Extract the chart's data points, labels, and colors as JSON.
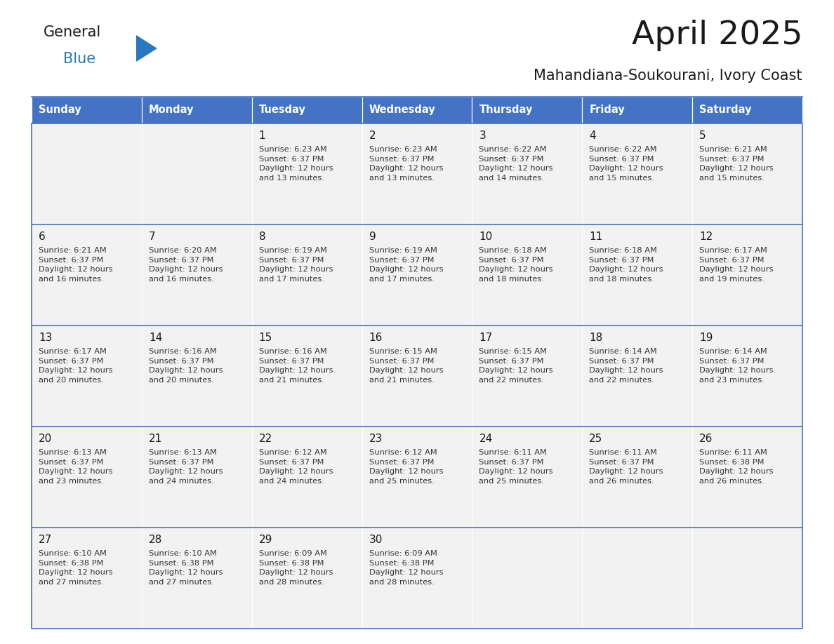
{
  "title": "April 2025",
  "subtitle": "Mahandiana-Soukourani, Ivory Coast",
  "header_color": "#4472C4",
  "header_text_color": "#FFFFFF",
  "cell_bg_color": "#F2F2F2",
  "cell_bg_empty": "#FFFFFF",
  "border_color": "#4472C4",
  "text_color": "#333333",
  "day_num_color": "#1a1a1a",
  "days_of_week": [
    "Sunday",
    "Monday",
    "Tuesday",
    "Wednesday",
    "Thursday",
    "Friday",
    "Saturday"
  ],
  "weeks": [
    [
      {
        "day": "",
        "text": ""
      },
      {
        "day": "",
        "text": ""
      },
      {
        "day": "1",
        "text": "Sunrise: 6:23 AM\nSunset: 6:37 PM\nDaylight: 12 hours\nand 13 minutes."
      },
      {
        "day": "2",
        "text": "Sunrise: 6:23 AM\nSunset: 6:37 PM\nDaylight: 12 hours\nand 13 minutes."
      },
      {
        "day": "3",
        "text": "Sunrise: 6:22 AM\nSunset: 6:37 PM\nDaylight: 12 hours\nand 14 minutes."
      },
      {
        "day": "4",
        "text": "Sunrise: 6:22 AM\nSunset: 6:37 PM\nDaylight: 12 hours\nand 15 minutes."
      },
      {
        "day": "5",
        "text": "Sunrise: 6:21 AM\nSunset: 6:37 PM\nDaylight: 12 hours\nand 15 minutes."
      }
    ],
    [
      {
        "day": "6",
        "text": "Sunrise: 6:21 AM\nSunset: 6:37 PM\nDaylight: 12 hours\nand 16 minutes."
      },
      {
        "day": "7",
        "text": "Sunrise: 6:20 AM\nSunset: 6:37 PM\nDaylight: 12 hours\nand 16 minutes."
      },
      {
        "day": "8",
        "text": "Sunrise: 6:19 AM\nSunset: 6:37 PM\nDaylight: 12 hours\nand 17 minutes."
      },
      {
        "day": "9",
        "text": "Sunrise: 6:19 AM\nSunset: 6:37 PM\nDaylight: 12 hours\nand 17 minutes."
      },
      {
        "day": "10",
        "text": "Sunrise: 6:18 AM\nSunset: 6:37 PM\nDaylight: 12 hours\nand 18 minutes."
      },
      {
        "day": "11",
        "text": "Sunrise: 6:18 AM\nSunset: 6:37 PM\nDaylight: 12 hours\nand 18 minutes."
      },
      {
        "day": "12",
        "text": "Sunrise: 6:17 AM\nSunset: 6:37 PM\nDaylight: 12 hours\nand 19 minutes."
      }
    ],
    [
      {
        "day": "13",
        "text": "Sunrise: 6:17 AM\nSunset: 6:37 PM\nDaylight: 12 hours\nand 20 minutes."
      },
      {
        "day": "14",
        "text": "Sunrise: 6:16 AM\nSunset: 6:37 PM\nDaylight: 12 hours\nand 20 minutes."
      },
      {
        "day": "15",
        "text": "Sunrise: 6:16 AM\nSunset: 6:37 PM\nDaylight: 12 hours\nand 21 minutes."
      },
      {
        "day": "16",
        "text": "Sunrise: 6:15 AM\nSunset: 6:37 PM\nDaylight: 12 hours\nand 21 minutes."
      },
      {
        "day": "17",
        "text": "Sunrise: 6:15 AM\nSunset: 6:37 PM\nDaylight: 12 hours\nand 22 minutes."
      },
      {
        "day": "18",
        "text": "Sunrise: 6:14 AM\nSunset: 6:37 PM\nDaylight: 12 hours\nand 22 minutes."
      },
      {
        "day": "19",
        "text": "Sunrise: 6:14 AM\nSunset: 6:37 PM\nDaylight: 12 hours\nand 23 minutes."
      }
    ],
    [
      {
        "day": "20",
        "text": "Sunrise: 6:13 AM\nSunset: 6:37 PM\nDaylight: 12 hours\nand 23 minutes."
      },
      {
        "day": "21",
        "text": "Sunrise: 6:13 AM\nSunset: 6:37 PM\nDaylight: 12 hours\nand 24 minutes."
      },
      {
        "day": "22",
        "text": "Sunrise: 6:12 AM\nSunset: 6:37 PM\nDaylight: 12 hours\nand 24 minutes."
      },
      {
        "day": "23",
        "text": "Sunrise: 6:12 AM\nSunset: 6:37 PM\nDaylight: 12 hours\nand 25 minutes."
      },
      {
        "day": "24",
        "text": "Sunrise: 6:11 AM\nSunset: 6:37 PM\nDaylight: 12 hours\nand 25 minutes."
      },
      {
        "day": "25",
        "text": "Sunrise: 6:11 AM\nSunset: 6:37 PM\nDaylight: 12 hours\nand 26 minutes."
      },
      {
        "day": "26",
        "text": "Sunrise: 6:11 AM\nSunset: 6:38 PM\nDaylight: 12 hours\nand 26 minutes."
      }
    ],
    [
      {
        "day": "27",
        "text": "Sunrise: 6:10 AM\nSunset: 6:38 PM\nDaylight: 12 hours\nand 27 minutes."
      },
      {
        "day": "28",
        "text": "Sunrise: 6:10 AM\nSunset: 6:38 PM\nDaylight: 12 hours\nand 27 minutes."
      },
      {
        "day": "29",
        "text": "Sunrise: 6:09 AM\nSunset: 6:38 PM\nDaylight: 12 hours\nand 28 minutes."
      },
      {
        "day": "30",
        "text": "Sunrise: 6:09 AM\nSunset: 6:38 PM\nDaylight: 12 hours\nand 28 minutes."
      },
      {
        "day": "",
        "text": ""
      },
      {
        "day": "",
        "text": ""
      },
      {
        "day": "",
        "text": ""
      }
    ]
  ],
  "logo_general_color": "#1a1a1a",
  "logo_blue_color": "#2878BE",
  "logo_triangle_color": "#2878BE",
  "fig_width": 11.88,
  "fig_height": 9.18,
  "dpi": 100
}
